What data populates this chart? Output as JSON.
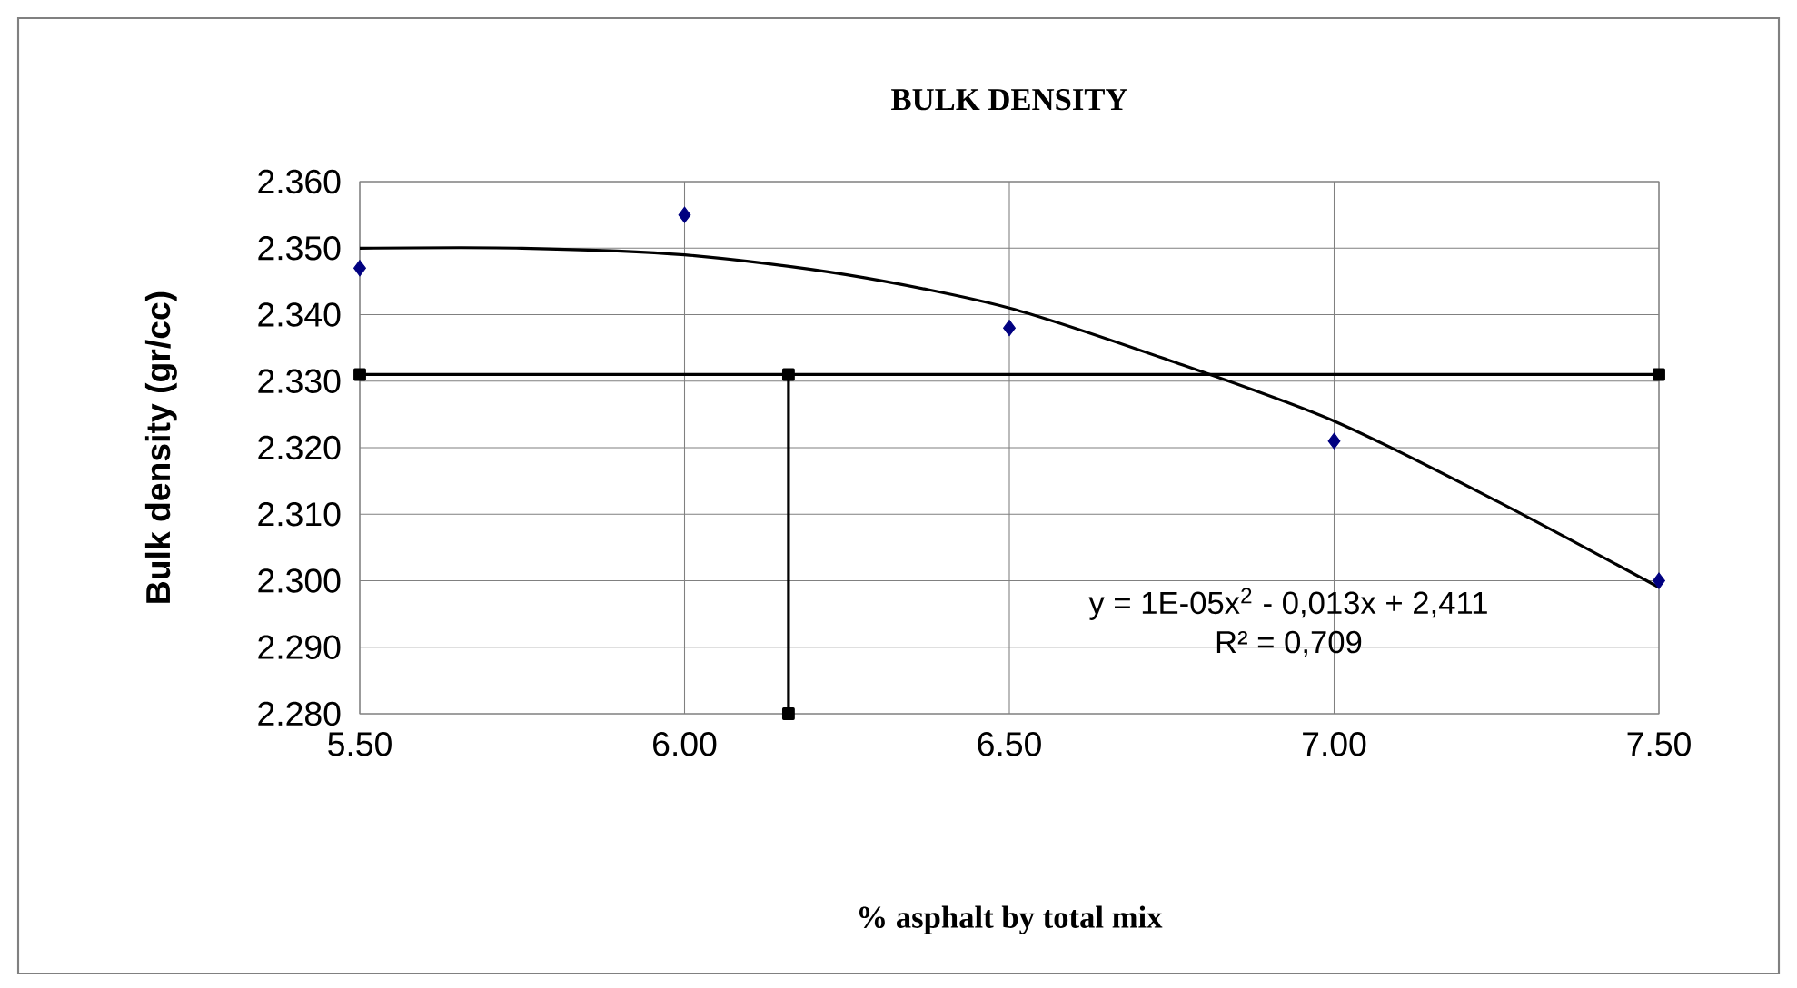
{
  "chart_data": {
    "type": "scatter",
    "title": "BULK DENSITY",
    "xlabel": "% asphalt by total mix",
    "ylabel": "Bulk density (gr/cc)",
    "xlim": [
      5.5,
      7.5
    ],
    "ylim": [
      2.28,
      2.36
    ],
    "xticks": [
      {
        "value": 5.5,
        "label": "5.50"
      },
      {
        "value": 6.0,
        "label": "6.00"
      },
      {
        "value": 6.5,
        "label": "6.50"
      },
      {
        "value": 7.0,
        "label": "7.00"
      },
      {
        "value": 7.5,
        "label": "7.50"
      }
    ],
    "yticks": [
      {
        "value": 2.28,
        "label": "2.280"
      },
      {
        "value": 2.29,
        "label": "2.290"
      },
      {
        "value": 2.3,
        "label": "2.300"
      },
      {
        "value": 2.31,
        "label": "2.310"
      },
      {
        "value": 2.32,
        "label": "2.320"
      },
      {
        "value": 2.33,
        "label": "2.330"
      },
      {
        "value": 2.34,
        "label": "2.340"
      },
      {
        "value": 2.35,
        "label": "2.350"
      },
      {
        "value": 2.36,
        "label": "2.360"
      }
    ],
    "grid": true,
    "series": [
      {
        "color": "#000080",
        "marker": "diamond",
        "x": [
          5.5,
          6.0,
          6.5,
          7.0,
          7.5
        ],
        "values": [
          2.347,
          2.355,
          2.338,
          2.321,
          2.3
        ]
      },
      {
        "type": "line",
        "color": "#000000",
        "marker": "none",
        "x": [
          5.5,
          5.75,
          6.0,
          6.25,
          6.5,
          6.75,
          7.0,
          7.25,
          7.5
        ],
        "values": [
          2.35,
          2.35,
          2.349,
          2.346,
          2.341,
          2.333,
          2.324,
          2.312,
          2.299
        ]
      },
      {
        "type": "line",
        "color": "#000000",
        "marker": "square",
        "x": [
          5.5,
          7.5
        ],
        "values": [
          2.331,
          2.331
        ]
      },
      {
        "type": "line",
        "color": "#000000",
        "marker": "square",
        "x": [
          6.16,
          6.16
        ],
        "values": [
          2.28,
          2.331
        ]
      }
    ],
    "annotations": [
      "y = 1E-05x$^{2}$ - 0,013x + 2,411",
      "R² = 0,709"
    ]
  }
}
